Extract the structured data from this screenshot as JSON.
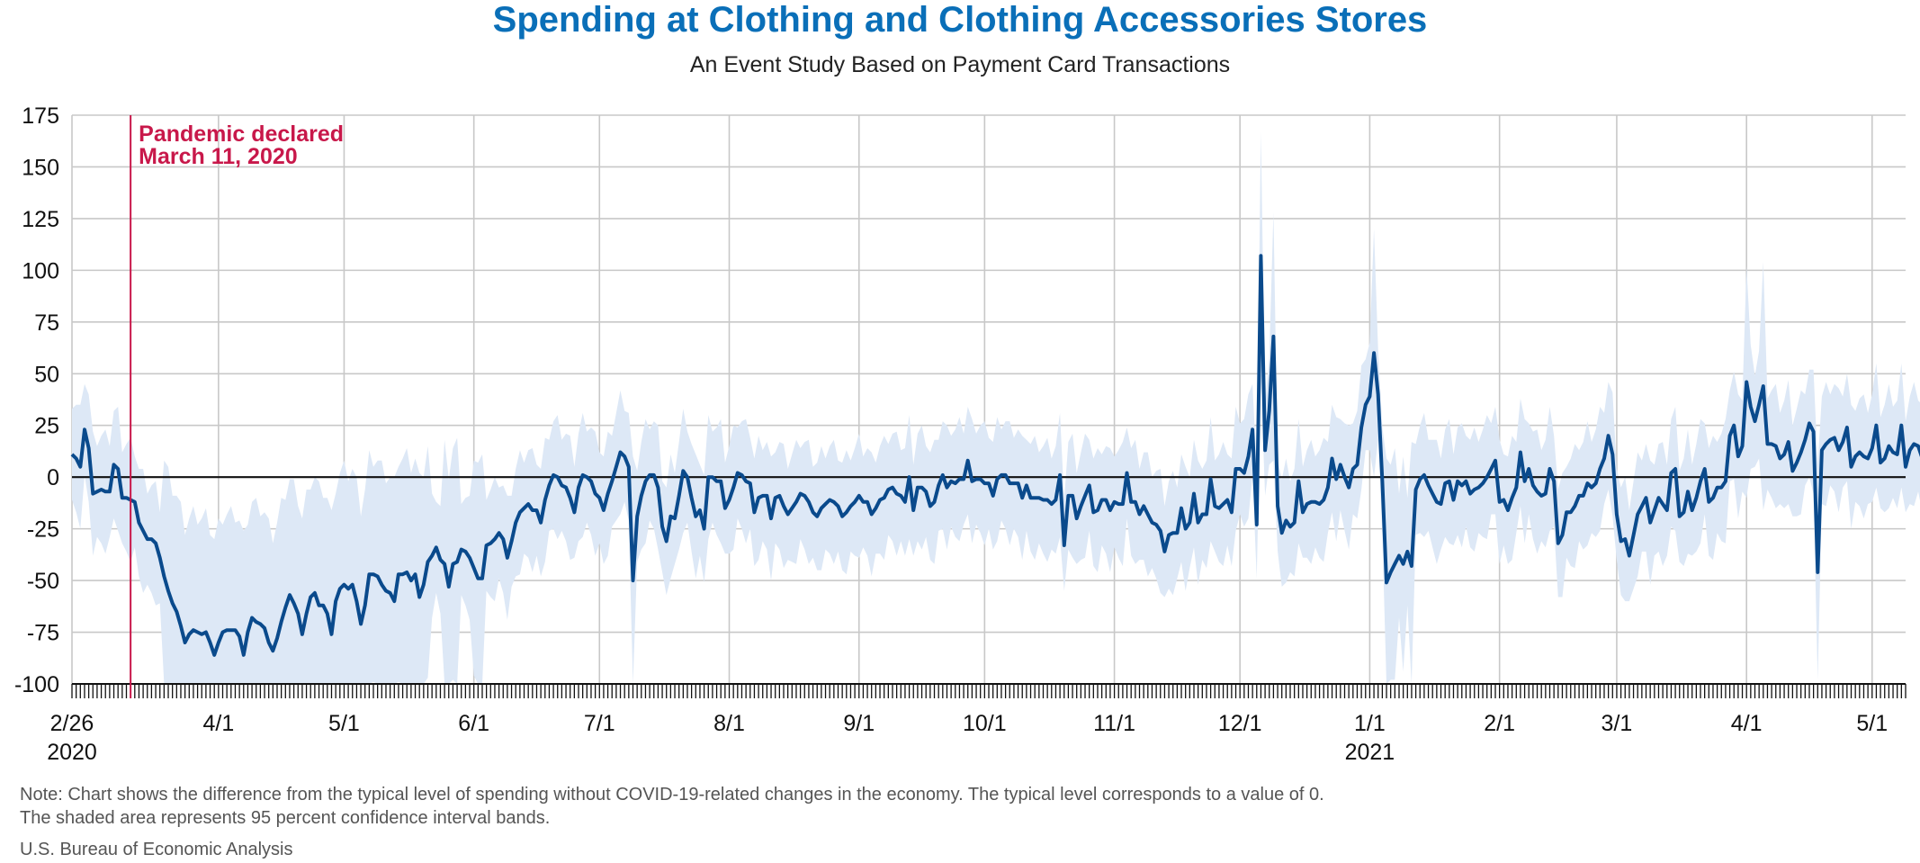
{
  "title": "Spending at Clothing and Clothing Accessories Stores",
  "subtitle": "An Event Study Based on Payment Card Transactions",
  "note_line1": "Note: Chart shows the difference from the typical level of spending without COVID-19-related changes in the economy. The typical level corresponds to a value of 0.",
  "note_line2": "The shaded area represents 95 percent confidence interval bands.",
  "source": "U.S. Bureau of Economic Analysis",
  "colors": {
    "title": "#0a6fb8",
    "line": "#0a4a8c",
    "band": "#dde8f6",
    "annotation": "#c8184a",
    "grid": "#c8c8c8"
  },
  "chart_data": {
    "type": "line",
    "x_start": "2020-02-26",
    "x_end": "2021-05-09",
    "ylim": [
      -100,
      175
    ],
    "yticks": [
      175,
      150,
      125,
      100,
      75,
      50,
      25,
      0,
      -25,
      -50,
      -75,
      -100
    ],
    "xticks": [
      {
        "date": "2020-02-26",
        "label": "2/26",
        "sub": "2020"
      },
      {
        "date": "2020-04-01",
        "label": "4/1"
      },
      {
        "date": "2020-05-01",
        "label": "5/1"
      },
      {
        "date": "2020-06-01",
        "label": "6/1"
      },
      {
        "date": "2020-07-01",
        "label": "7/1"
      },
      {
        "date": "2020-08-01",
        "label": "8/1"
      },
      {
        "date": "2020-09-01",
        "label": "9/1"
      },
      {
        "date": "2020-10-01",
        "label": "10/1"
      },
      {
        "date": "2020-11-01",
        "label": "11/1"
      },
      {
        "date": "2020-12-01",
        "label": "12/1"
      },
      {
        "date": "2021-01-01",
        "label": "1/1",
        "sub": "2021"
      },
      {
        "date": "2021-02-01",
        "label": "2/1"
      },
      {
        "date": "2021-03-01",
        "label": "3/1"
      },
      {
        "date": "2021-04-01",
        "label": "4/1"
      },
      {
        "date": "2021-05-01",
        "label": "5/1"
      }
    ],
    "annotation": {
      "date": "2020-03-11",
      "line1": "Pandemic declared",
      "line2": "March 11, 2020"
    },
    "zero_line": true,
    "grid": true,
    "band_label": "95 percent confidence interval",
    "series": [
      {
        "values": [
          11,
          9,
          5,
          23,
          14,
          -8,
          -7,
          -6,
          -7,
          -7,
          6,
          4,
          -10,
          -10,
          -11,
          -12,
          -22,
          -26,
          -30,
          -30,
          -32,
          -39,
          -48,
          -55,
          -61,
          -65,
          -72,
          -80,
          -76,
          -74,
          -75,
          -76,
          -75,
          -80,
          -86,
          -80,
          -75,
          -74,
          -74,
          -74,
          -77,
          -86,
          -75,
          -68,
          -70,
          -71,
          -73,
          -80,
          -84,
          -78,
          -70,
          -63,
          -57,
          -61,
          -66,
          -76,
          -66,
          -58,
          -56,
          -62,
          -62,
          -66,
          -76,
          -60,
          -54,
          -52,
          -54,
          -52,
          -60,
          -71,
          -62,
          -47,
          -47,
          -48,
          -52,
          -55,
          -56,
          -60,
          -47,
          -47,
          -46,
          -50,
          -47,
          -58,
          -52,
          -41,
          -38,
          -34,
          -40,
          -42,
          -53,
          -42,
          -41,
          -35,
          -36,
          -39,
          -44,
          -49,
          -49,
          -33,
          -32,
          -30,
          -27,
          -30,
          -39,
          -31,
          -22,
          -17,
          -15,
          -13,
          -16,
          -16,
          -22,
          -11,
          -4,
          1,
          0,
          -4,
          -5,
          -10,
          -17,
          -5,
          1,
          0,
          -2,
          -8,
          -10,
          -16,
          -8,
          -2,
          5,
          12,
          10,
          5,
          -50,
          -19,
          -9,
          -2,
          1,
          1,
          -5,
          -24,
          -31,
          -19,
          -20,
          -9,
          3,
          0,
          -10,
          -19,
          -16,
          -25,
          0,
          0,
          -2,
          -2,
          -15,
          -11,
          -5,
          2,
          1,
          -2,
          -3,
          -17,
          -10,
          -9,
          -9,
          -20,
          -10,
          -9,
          -14,
          -18,
          -15,
          -12,
          -8,
          -9,
          -12,
          -17,
          -19,
          -15,
          -13,
          -11,
          -12,
          -14,
          -19,
          -17,
          -14,
          -12,
          -9,
          -12,
          -12,
          -18,
          -15,
          -11,
          -10,
          -6,
          -5,
          -8,
          -9,
          -12,
          0,
          -16,
          -5,
          -5,
          -7,
          -14,
          -12,
          -4,
          1,
          -5,
          -2,
          -3,
          -1,
          -1,
          8,
          -2,
          -1,
          -1,
          -3,
          -3,
          -9,
          -1,
          1,
          1,
          -3,
          -3,
          -3,
          -10,
          -4,
          -10,
          -10,
          -10,
          -11,
          -11,
          -13,
          -11,
          1,
          -33,
          -9,
          -9,
          -20,
          -14,
          -9,
          -4,
          -17,
          -16,
          -11,
          -11,
          -16,
          -12,
          -13,
          -13,
          2,
          -12,
          -12,
          -18,
          -14,
          -18,
          -22,
          -23,
          -26,
          -36,
          -28,
          -27,
          -27,
          -15,
          -25,
          -22,
          -8,
          -22,
          -18,
          -18,
          -1,
          -14,
          -15,
          -13,
          -11,
          -17,
          4,
          4,
          2,
          10,
          23,
          -23,
          107,
          13,
          32,
          68,
          -14,
          -27,
          -21,
          -24,
          -22,
          -2,
          -17,
          -13,
          -12,
          -12,
          -13,
          -11,
          -5,
          9,
          -1,
          6,
          0,
          -5,
          4,
          6,
          24,
          35,
          39,
          60,
          40,
          -2,
          -51,
          -46,
          -42,
          -38,
          -42,
          -36,
          -43,
          -6,
          -1,
          1,
          -4,
          -8,
          -12,
          -13,
          -3,
          -2,
          -11,
          -2,
          -4,
          -2,
          -8,
          -6,
          -5,
          -3,
          0,
          4,
          8,
          -12,
          -11,
          -16,
          -10,
          -5,
          12,
          -2,
          4,
          -4,
          -7,
          -9,
          -8,
          4,
          -2,
          -32,
          -28,
          -17,
          -17,
          -14,
          -9,
          -9,
          -3,
          -5,
          -3,
          4,
          9,
          20,
          11,
          -18,
          -31,
          -30,
          -38,
          -28,
          -18,
          -14,
          -10,
          -22,
          -16,
          -10,
          -13,
          -16,
          2,
          4,
          -19,
          -17,
          -7,
          -16,
          -10,
          -2,
          4,
          -12,
          -10,
          -5,
          -5,
          -2,
          20,
          25,
          10,
          15,
          46,
          34,
          27,
          35,
          44,
          16,
          16,
          15,
          9,
          11,
          17,
          3,
          7,
          12,
          18,
          26,
          22,
          -46,
          13,
          16,
          18,
          19,
          13,
          17,
          24,
          5,
          10,
          12,
          10,
          9,
          14,
          25,
          7,
          9,
          15,
          12,
          11,
          25,
          5,
          13,
          16,
          15,
          9,
          20,
          6,
          14,
          17,
          18,
          19,
          20,
          18
        ],
        "band_halfwidth": 22
      }
    ]
  }
}
